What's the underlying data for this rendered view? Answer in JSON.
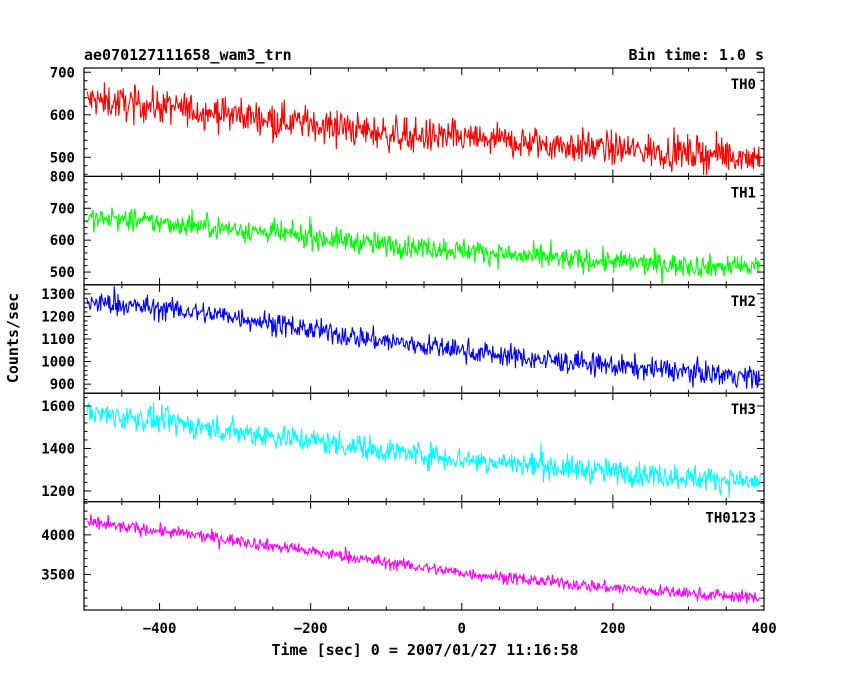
{
  "header": {
    "left_title": "ae070127111658_wam3_trn",
    "right_title": "Bin time: 1.0 s"
  },
  "chart_data": {
    "type": "line",
    "title": "ae070127111658_wam3_trn",
    "subtitle": "Bin time: 1.0 s",
    "xlabel": "Time [sec] 0 = 2007/01/27 11:16:58",
    "ylabel": "Counts/sec",
    "xlim": [
      -500,
      400
    ],
    "x_range": [
      -500,
      400
    ],
    "x_ticks": [
      -400,
      -200,
      0,
      200,
      400
    ],
    "x_tick_labels": [
      "−400",
      "−200",
      "0",
      "200",
      "400"
    ],
    "grid": false,
    "legend": "none",
    "series": [
      {
        "name": "TH0",
        "color": "#ff0000",
        "ylim": [
          455,
          710
        ],
        "y_ticks": [
          500,
          600,
          700
        ],
        "y_tick_labels": [
          "500",
          "600",
          "700"
        ],
        "trend": [
          [
            -500,
            635
          ],
          [
            -400,
            620
          ],
          [
            -300,
            600
          ],
          [
            -200,
            580
          ],
          [
            -100,
            555
          ],
          [
            0,
            545
          ],
          [
            100,
            532
          ],
          [
            200,
            520
          ],
          [
            300,
            510
          ],
          [
            400,
            500
          ]
        ],
        "noise": 28
      },
      {
        "name": "TH1",
        "color": "#00ff00",
        "ylim": [
          460,
          800
        ],
        "y_ticks": [
          500,
          600,
          700,
          800
        ],
        "y_tick_labels": [
          "500",
          "600",
          "700",
          "800"
        ],
        "trend": [
          [
            -500,
            670
          ],
          [
            -400,
            655
          ],
          [
            -300,
            635
          ],
          [
            -200,
            610
          ],
          [
            -100,
            585
          ],
          [
            0,
            570
          ],
          [
            100,
            545
          ],
          [
            200,
            532
          ],
          [
            300,
            520
          ],
          [
            400,
            515
          ]
        ],
        "noise": 25
      },
      {
        "name": "TH2",
        "color": "#0000ff",
        "ylim": [
          860,
          1340
        ],
        "y_ticks": [
          900,
          1000,
          1100,
          1200,
          1300
        ],
        "y_tick_labels": [
          "900",
          "1000",
          "1100",
          "1200",
          "1300"
        ],
        "trend": [
          [
            -500,
            1265
          ],
          [
            -400,
            1235
          ],
          [
            -300,
            1200
          ],
          [
            -200,
            1140
          ],
          [
            -100,
            1090
          ],
          [
            0,
            1050
          ],
          [
            100,
            1010
          ],
          [
            200,
            980
          ],
          [
            300,
            955
          ],
          [
            400,
            930
          ]
        ],
        "noise": 35
      },
      {
        "name": "TH3",
        "color": "#00ffff",
        "ylim": [
          1150,
          1660
        ],
        "y_ticks": [
          1200,
          1400,
          1600
        ],
        "y_tick_labels": [
          "1200",
          "1400",
          "1600"
        ],
        "trend": [
          [
            -500,
            1570
          ],
          [
            -400,
            1530
          ],
          [
            -300,
            1480
          ],
          [
            -200,
            1440
          ],
          [
            -100,
            1390
          ],
          [
            0,
            1350
          ],
          [
            100,
            1320
          ],
          [
            200,
            1290
          ],
          [
            300,
            1265
          ],
          [
            400,
            1240
          ]
        ],
        "noise": 42
      },
      {
        "name": "TH0123",
        "color": "#ff00ff",
        "ylim": [
          3050,
          4420
        ],
        "y_ticks": [
          3500,
          4000
        ],
        "y_tick_labels": [
          "3500",
          "4000"
        ],
        "trend": [
          [
            -500,
            4150
          ],
          [
            -400,
            4050
          ],
          [
            -300,
            3930
          ],
          [
            -200,
            3790
          ],
          [
            -100,
            3650
          ],
          [
            0,
            3520
          ],
          [
            100,
            3420
          ],
          [
            200,
            3330
          ],
          [
            300,
            3260
          ],
          [
            400,
            3200
          ]
        ],
        "noise": 55
      }
    ]
  }
}
